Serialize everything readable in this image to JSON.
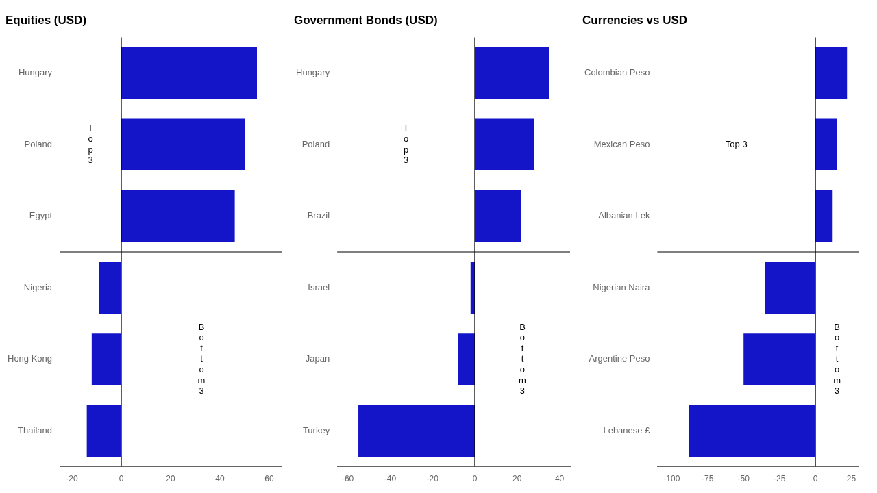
{
  "chart_data": [
    {
      "type": "bar",
      "orientation": "horizontal",
      "title": "Equities (USD)",
      "categories": [
        "Hungary",
        "Poland",
        "Egypt",
        "Nigeria",
        "Hong Kong",
        "Thailand"
      ],
      "values": [
        55,
        50,
        46,
        -9,
        -12,
        -14
      ],
      "color": "#1414c8",
      "xlim": [
        -25,
        65
      ],
      "xticks": [
        -20,
        0,
        20,
        40,
        60
      ],
      "grid": false,
      "legend": false,
      "annotations": [
        "T\no\np\n3",
        "B\no\nt\nt\no\nm\n3"
      ]
    },
    {
      "type": "bar",
      "orientation": "horizontal",
      "title": "Government Bonds (USD)",
      "categories": [
        "Hungary",
        "Poland",
        "Brazil",
        "Israel",
        "Japan",
        "Turkey"
      ],
      "values": [
        35,
        28,
        22,
        -2,
        -8,
        -55
      ],
      "color": "#1414c8",
      "xlim": [
        -65,
        45
      ],
      "xticks": [
        -60,
        -40,
        -20,
        0,
        20,
        40
      ],
      "grid": false,
      "legend": false,
      "annotations": [
        "T\no\np\n3",
        "B\no\nt\nt\no\nm\n3"
      ]
    },
    {
      "type": "bar",
      "orientation": "horizontal",
      "title": "Currencies vs USD",
      "categories": [
        "Colombian Peso",
        "Mexican Peso",
        "Albanian Lek",
        "Nigerian Naira",
        "Argentine Peso",
        "Lebanese £"
      ],
      "values": [
        22,
        15,
        12,
        -35,
        -50,
        -88
      ],
      "color": "#1414c8",
      "xlim": [
        -110,
        30
      ],
      "xticks": [
        -100,
        -75,
        -50,
        -25,
        0,
        25
      ],
      "grid": false,
      "legend": false,
      "annotations": [
        "Top 3",
        "B\no\nt\nt\no\nm\n3"
      ]
    }
  ]
}
